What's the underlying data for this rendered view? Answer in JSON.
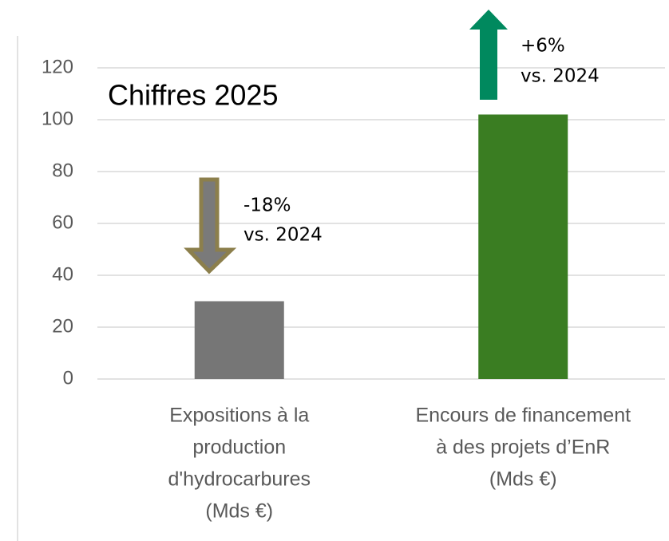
{
  "chart_data": {
    "type": "bar",
    "title": "Chiffres 2025",
    "categories": [
      [
        "Expositions à la",
        "production",
        "d'hydrocarbures",
        "(Mds €)"
      ],
      [
        "Encours de financement",
        "à des projets d’EnR",
        "(Mds €)"
      ]
    ],
    "values": [
      30,
      102
    ],
    "colors": [
      "#767676",
      "#3a7d22"
    ],
    "ylim": [
      0,
      120
    ],
    "yticks": [
      0,
      20,
      40,
      60,
      80,
      100,
      120
    ],
    "grid": true,
    "annotations": [
      [
        "-18%",
        "vs. 2024"
      ],
      [
        "+6%",
        "vs. 2024"
      ]
    ]
  }
}
